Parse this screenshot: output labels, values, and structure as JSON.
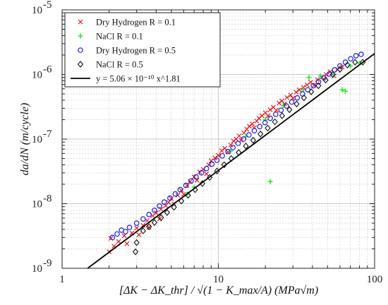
{
  "chart_data": {
    "type": "scatter",
    "title": "",
    "xlabel": "[ΔK − ΔK_thr] / √(1 − K_max/A)  (MPa√m)",
    "ylabel": "da/dN (m/cycle)",
    "xscale": "log",
    "yscale": "log",
    "xlim": [
      1,
      100
    ],
    "ylim": [
      1e-09,
      1e-05
    ],
    "x_ticks": [
      {
        "value": 1,
        "label": "1"
      },
      {
        "value": 10,
        "label": "10"
      },
      {
        "value": 100,
        "label": "100"
      }
    ],
    "y_ticks": [
      {
        "value": 1e-09,
        "base": "10",
        "exp": "-9"
      },
      {
        "value": 1e-08,
        "base": "10",
        "exp": "-8"
      },
      {
        "value": 1e-07,
        "base": "10",
        "exp": "-7"
      },
      {
        "value": 1e-06,
        "base": "10",
        "exp": "-6"
      },
      {
        "value": 1e-05,
        "base": "10",
        "exp": "-5"
      }
    ],
    "grid": true,
    "legend_position": "top-left",
    "series": [
      {
        "name": "Dry Hydrogen R = 0.1",
        "marker": "x",
        "color": "#e8161a",
        "points": [
          [
            2.0,
            1.8e-09
          ],
          [
            2.05,
            2.9e-09
          ],
          [
            2.15,
            2.2e-09
          ],
          [
            2.3,
            2.6e-09
          ],
          [
            2.5,
            3.2e-09
          ],
          [
            2.6,
            2.4e-09
          ],
          [
            2.8,
            3.5e-09
          ],
          [
            3.0,
            4.2e-09
          ],
          [
            3.1,
            3.3e-09
          ],
          [
            3.3,
            4.6e-09
          ],
          [
            3.5,
            5.5e-09
          ],
          [
            3.6,
            4.3e-09
          ],
          [
            3.8,
            6.5e-09
          ],
          [
            4.0,
            7.2e-09
          ],
          [
            4.2,
            5.8e-09
          ],
          [
            4.3,
            8.2e-09
          ],
          [
            4.6,
            9.3e-09
          ],
          [
            4.8,
            1.05e-08
          ],
          [
            5.0,
            1.2e-08
          ],
          [
            5.2,
            1e-08
          ],
          [
            5.5,
            1.35e-08
          ],
          [
            5.8,
            1.6e-08
          ],
          [
            6.0,
            1.4e-08
          ],
          [
            6.3,
            1.9e-08
          ],
          [
            6.6,
            2.2e-08
          ],
          [
            7.0,
            2.6e-08
          ],
          [
            7.3,
            2.3e-08
          ],
          [
            7.6,
            3.1e-08
          ],
          [
            8.0,
            3.4e-08
          ],
          [
            8.4,
            2.9e-08
          ],
          [
            8.7,
            4e-08
          ],
          [
            9.0,
            4.6e-08
          ],
          [
            9.5,
            5.1e-08
          ],
          [
            10.0,
            5.6e-08
          ],
          [
            10.5,
            6.6e-08
          ],
          [
            11.0,
            7.2e-08
          ],
          [
            11.5,
            6.3e-08
          ],
          [
            12.0,
            8.1e-08
          ],
          [
            12.5,
            9.3e-08
          ],
          [
            13.0,
            1e-07
          ],
          [
            13.6,
            1.12e-07
          ],
          [
            14.0,
            9.6e-08
          ],
          [
            14.6,
            1.25e-07
          ],
          [
            15.2,
            1.42e-07
          ],
          [
            15.8,
            1.58e-07
          ],
          [
            16.5,
            1.72e-07
          ],
          [
            17.0,
            1.5e-07
          ],
          [
            17.6,
            1.9e-07
          ],
          [
            18.2,
            2.1e-07
          ],
          [
            19.0,
            2.3e-07
          ],
          [
            20.0,
            2.55e-07
          ],
          [
            20.8,
            2.3e-07
          ],
          [
            21.5,
            2.85e-07
          ],
          [
            22.5,
            3.1e-07
          ],
          [
            23.5,
            2.8e-07
          ],
          [
            24.5,
            3.6e-07
          ],
          [
            25.5,
            3.9e-07
          ],
          [
            26.5,
            3.5e-07
          ],
          [
            27.5,
            4.4e-07
          ],
          [
            29.0,
            4.8e-07
          ],
          [
            30.0,
            4.3e-07
          ],
          [
            31.5,
            5.3e-07
          ],
          [
            33.0,
            5.8e-07
          ],
          [
            35.0,
            6.3e-07
          ],
          [
            37.0,
            6.9e-07
          ],
          [
            39.0,
            7.6e-07
          ],
          [
            41.0,
            6.8e-07
          ],
          [
            43.0,
            8.3e-07
          ],
          [
            46.0,
            9.1e-07
          ],
          [
            49.0,
            1e-06
          ],
          [
            52.0,
            1.1e-06
          ],
          [
            55.0,
            9.5e-07
          ],
          [
            58.0,
            1.2e-06
          ],
          [
            62.0,
            1.3e-06
          ]
        ]
      },
      {
        "name": "NaCl R = 0.1",
        "marker": "plus",
        "color": "#2ee636",
        "points": [
          [
            6.3,
            1.4e-08
          ],
          [
            7.0,
            1.8e-08
          ],
          [
            12.0,
            6.5e-08
          ],
          [
            15.0,
            1.1e-07
          ],
          [
            20.0,
            2e-07
          ],
          [
            21.5,
            2.2e-08
          ],
          [
            26.0,
            3.3e-07
          ],
          [
            35.0,
            5.8e-07
          ],
          [
            38.0,
            9e-07
          ],
          [
            45.0,
            9.5e-07
          ],
          [
            55.0,
            1e-06
          ],
          [
            62.0,
            5.8e-07
          ],
          [
            65.0,
            5.5e-07
          ],
          [
            70.0,
            1.35e-06
          ],
          [
            80.0,
            1.5e-06
          ]
        ]
      },
      {
        "name": "Dry Hydrogen R = 0.5",
        "marker": "circle",
        "color": "#1e1ee0",
        "points": [
          [
            2.1,
            3e-09
          ],
          [
            2.25,
            3.4e-09
          ],
          [
            2.4,
            3.9e-09
          ],
          [
            2.55,
            3.7e-09
          ],
          [
            2.7,
            4.3e-09
          ],
          [
            3.0,
            5e-09
          ],
          [
            3.3,
            5.8e-09
          ],
          [
            3.6,
            6.8e-09
          ],
          [
            3.9,
            7.9e-09
          ],
          [
            4.2,
            9.2e-09
          ],
          [
            4.5,
            1.06e-08
          ],
          [
            4.9,
            1.22e-08
          ],
          [
            5.3,
            1.42e-08
          ],
          [
            5.7,
            1.65e-08
          ],
          [
            6.2,
            1.92e-08
          ],
          [
            6.7,
            2.25e-08
          ],
          [
            7.2,
            2.6e-08
          ],
          [
            7.8,
            3e-08
          ],
          [
            8.4,
            3.5e-08
          ],
          [
            9.1,
            4.1e-08
          ],
          [
            9.8,
            4.7e-08
          ],
          [
            10.6,
            5.5e-08
          ],
          [
            11.5,
            6.4e-08
          ],
          [
            12.4,
            7.4e-08
          ],
          [
            13.4,
            8.6e-08
          ],
          [
            14.5,
            1e-07
          ],
          [
            15.7,
            1.16e-07
          ],
          [
            17.0,
            1.35e-07
          ],
          [
            18.4,
            1.56e-07
          ],
          [
            19.9,
            1.8e-07
          ],
          [
            21.5,
            2.1e-07
          ],
          [
            23.3,
            2.42e-07
          ],
          [
            25.2,
            2.8e-07
          ],
          [
            27.3,
            3.25e-07
          ],
          [
            29.5,
            3.75e-07
          ],
          [
            32.0,
            4.35e-07
          ],
          [
            34.6,
            5e-07
          ],
          [
            37.4,
            5.8e-07
          ],
          [
            40.5,
            6.7e-07
          ],
          [
            43.8,
            7.7e-07
          ],
          [
            47.4,
            8.9e-07
          ],
          [
            51.3,
            1.02e-06
          ],
          [
            55.5,
            1.18e-06
          ],
          [
            60.0,
            1.36e-06
          ],
          [
            65.0,
            1.55e-06
          ],
          [
            70.3,
            1.75e-06
          ],
          [
            76.0,
            1.95e-06
          ],
          [
            82.0,
            2.05e-06
          ]
        ]
      },
      {
        "name": "NaCl R = 0.5",
        "marker": "diamond",
        "color": "#111111",
        "points": [
          [
            2.95,
            1.8e-09
          ],
          [
            3.0,
            2.5e-09
          ],
          [
            3.3,
            3.8e-09
          ],
          [
            3.6,
            4.4e-09
          ],
          [
            3.9,
            5.1e-09
          ],
          [
            4.3,
            6.1e-09
          ],
          [
            4.7,
            7.3e-09
          ],
          [
            5.2,
            8.8e-09
          ],
          [
            5.8,
            1.1e-08
          ],
          [
            6.4,
            1.35e-08
          ],
          [
            7.1,
            1.65e-08
          ],
          [
            7.9,
            2.05e-08
          ],
          [
            8.8,
            2.55e-08
          ],
          [
            9.8,
            3.2e-08
          ],
          [
            10.9,
            4e-08
          ],
          [
            12.1,
            5e-08
          ],
          [
            13.5,
            6.2e-08
          ],
          [
            15.0,
            7.8e-08
          ],
          [
            16.7,
            9.6e-08
          ],
          [
            18.6,
            1.2e-07
          ],
          [
            20.7,
            1.48e-07
          ],
          [
            23.0,
            1.85e-07
          ],
          [
            25.6,
            2.3e-07
          ],
          [
            28.5,
            2.85e-07
          ],
          [
            31.7,
            3.5e-07
          ],
          [
            35.3,
            4.35e-07
          ],
          [
            39.3,
            5.4e-07
          ],
          [
            43.7,
            6.7e-07
          ],
          [
            48.6,
            8.2e-07
          ],
          [
            54.0,
            1e-06
          ],
          [
            60.0,
            1.2e-06
          ],
          [
            67.0,
            1.4e-06
          ],
          [
            75.0,
            1.55e-06
          ],
          [
            84.0,
            1.55e-06
          ]
        ]
      },
      {
        "name": "y = 5.06 × 10⁻¹⁰ x^1.81",
        "marker": "line",
        "color": "#000000",
        "fit": {
          "a": 5.06e-10,
          "b": 1.81
        }
      }
    ]
  }
}
